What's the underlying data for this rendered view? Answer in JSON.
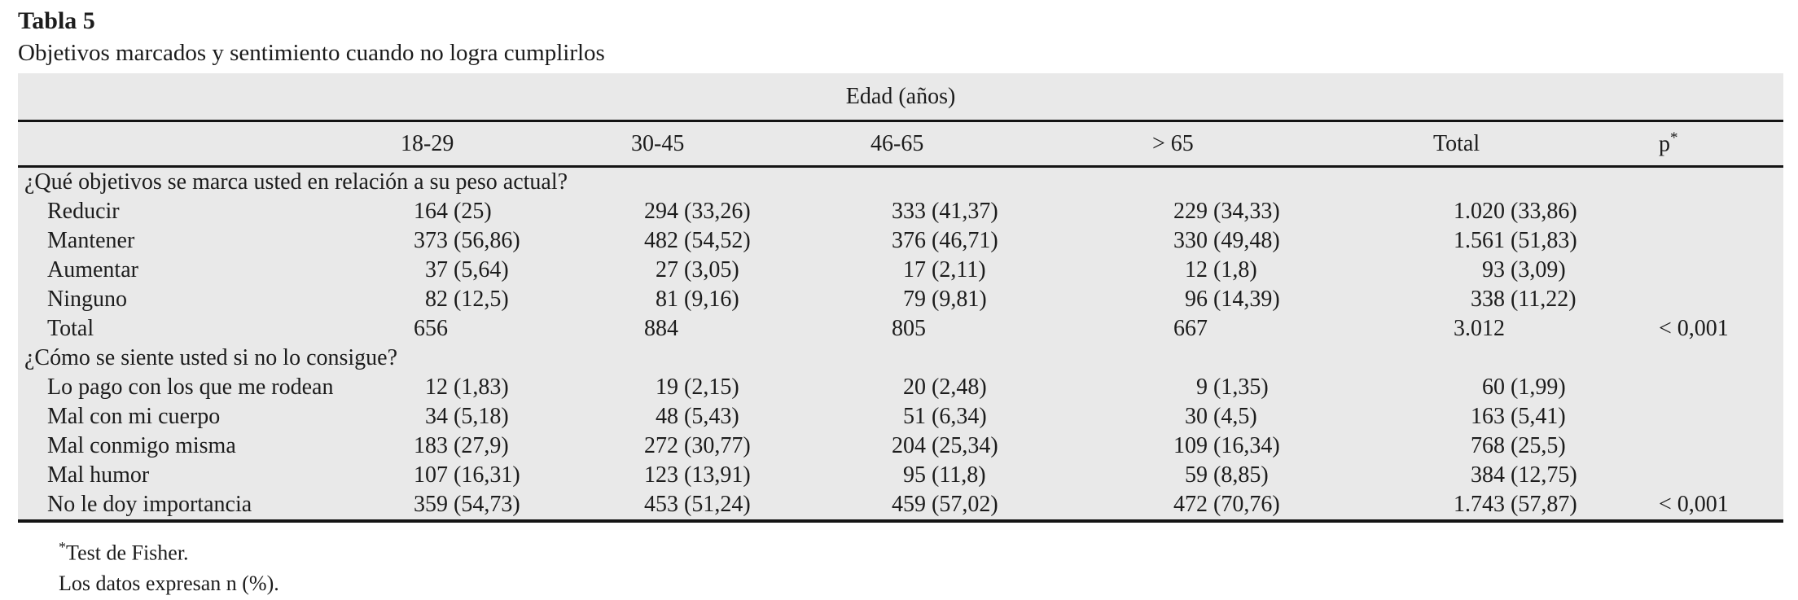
{
  "page": {
    "title": "Tabla 5",
    "caption": "Objetivos marcados y sentimiento cuando no logra cumplirlos"
  },
  "table": {
    "group_header": "Edad (años)",
    "columns": [
      "18-29",
      "30-45",
      "46-65",
      "> 65",
      "Total"
    ],
    "p_header": {
      "base": "p",
      "sup": "*"
    },
    "rows": [
      {
        "type": "section",
        "label": "¿Qué objetivos se marca usted en relación a su peso actual?"
      },
      {
        "type": "data",
        "label": "Reducir",
        "cells": [
          {
            "n": "164",
            "pct": "(25)"
          },
          {
            "n": "294",
            "pct": "(33,26)"
          },
          {
            "n": "333",
            "pct": "(41,37)"
          },
          {
            "n": "229",
            "pct": "(34,33)"
          },
          {
            "n": "1.020",
            "pct": "(33,86)"
          }
        ],
        "p": ""
      },
      {
        "type": "data",
        "label": "Mantener",
        "cells": [
          {
            "n": "373",
            "pct": "(56,86)"
          },
          {
            "n": "482",
            "pct": "(54,52)"
          },
          {
            "n": "376",
            "pct": "(46,71)"
          },
          {
            "n": "330",
            "pct": "(49,48)"
          },
          {
            "n": "1.561",
            "pct": "(51,83)"
          }
        ],
        "p": ""
      },
      {
        "type": "data",
        "label": "Aumentar",
        "cells": [
          {
            "n": "37",
            "pct": "(5,64)"
          },
          {
            "n": "27",
            "pct": "(3,05)"
          },
          {
            "n": "17",
            "pct": "(2,11)"
          },
          {
            "n": "12",
            "pct": "(1,8)"
          },
          {
            "n": "93",
            "pct": "(3,09)"
          }
        ],
        "p": ""
      },
      {
        "type": "data",
        "label": "Ninguno",
        "cells": [
          {
            "n": "82",
            "pct": "(12,5)"
          },
          {
            "n": "81",
            "pct": "(9,16)"
          },
          {
            "n": "79",
            "pct": "(9,81)"
          },
          {
            "n": "96",
            "pct": "(14,39)"
          },
          {
            "n": "338",
            "pct": "(11,22)"
          }
        ],
        "p": ""
      },
      {
        "type": "data",
        "label": "Total",
        "cells": [
          {
            "n": "656",
            "pct": ""
          },
          {
            "n": "884",
            "pct": ""
          },
          {
            "n": "805",
            "pct": ""
          },
          {
            "n": "667",
            "pct": ""
          },
          {
            "n": "3.012",
            "pct": ""
          }
        ],
        "p": "< 0,001"
      },
      {
        "type": "section",
        "label": "¿Cómo se siente usted si no lo consigue?"
      },
      {
        "type": "data",
        "label": "Lo pago con los que me rodean",
        "cells": [
          {
            "n": "12",
            "pct": "(1,83)"
          },
          {
            "n": "19",
            "pct": "(2,15)"
          },
          {
            "n": "20",
            "pct": "(2,48)"
          },
          {
            "n": "9",
            "pct": "(1,35)"
          },
          {
            "n": "60",
            "pct": "(1,99)"
          }
        ],
        "p": ""
      },
      {
        "type": "data",
        "label": "Mal con mi cuerpo",
        "cells": [
          {
            "n": "34",
            "pct": "(5,18)"
          },
          {
            "n": "48",
            "pct": "(5,43)"
          },
          {
            "n": "51",
            "pct": "(6,34)"
          },
          {
            "n": "30",
            "pct": "(4,5)"
          },
          {
            "n": "163",
            "pct": "(5,41)"
          }
        ],
        "p": ""
      },
      {
        "type": "data",
        "label": "Mal conmigo misma",
        "cells": [
          {
            "n": "183",
            "pct": "(27,9)"
          },
          {
            "n": "272",
            "pct": "(30,77)"
          },
          {
            "n": "204",
            "pct": "(25,34)"
          },
          {
            "n": "109",
            "pct": "(16,34)"
          },
          {
            "n": "768",
            "pct": "(25,5)"
          }
        ],
        "p": ""
      },
      {
        "type": "data",
        "label": "Mal humor",
        "cells": [
          {
            "n": "107",
            "pct": "(16,31)"
          },
          {
            "n": "123",
            "pct": "(13,91)"
          },
          {
            "n": "95",
            "pct": "(11,8)"
          },
          {
            "n": "59",
            "pct": "(8,85)"
          },
          {
            "n": "384",
            "pct": "(12,75)"
          }
        ],
        "p": ""
      },
      {
        "type": "data",
        "label": "No le doy importancia",
        "cells": [
          {
            "n": "359",
            "pct": "(54,73)"
          },
          {
            "n": "453",
            "pct": "(51,24)"
          },
          {
            "n": "459",
            "pct": "(57,02)"
          },
          {
            "n": "472",
            "pct": "(70,76)"
          },
          {
            "n": "1.743",
            "pct": "(57,87)"
          }
        ],
        "p": "< 0,001"
      }
    ],
    "footnotes": [
      {
        "sup": "*",
        "text": "Test de Fisher."
      },
      {
        "sup": "",
        "text": "Los datos expresan n (%)."
      }
    ],
    "colors": {
      "table_background": "#e9e9e9",
      "rule": "#141414",
      "text": "#1c1c1c"
    }
  }
}
